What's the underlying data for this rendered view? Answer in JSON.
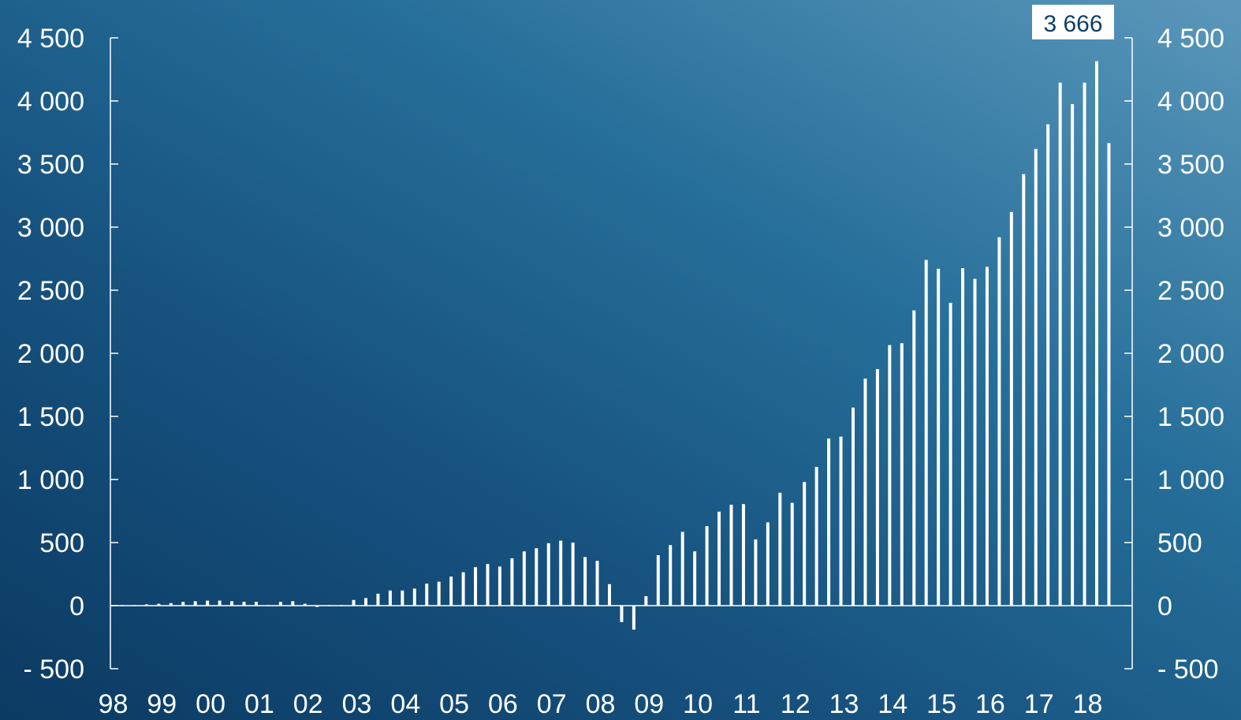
{
  "chart_data": {
    "type": "bar",
    "title": "",
    "xlabel": "",
    "ylabel": "",
    "ylim": [
      -500,
      4500
    ],
    "y_ticks": [
      -500,
      0,
      500,
      1000,
      1500,
      2000,
      2500,
      3000,
      3500,
      4000,
      4500
    ],
    "y_tick_labels": [
      "- 500",
      "0",
      "500",
      "1 000",
      "1 500",
      "2 000",
      "2 500",
      "3 000",
      "3 500",
      "4 000",
      "4 500"
    ],
    "x_tick_labels": [
      "98",
      "99",
      "00",
      "01",
      "02",
      "03",
      "04",
      "05",
      "06",
      "07",
      "08",
      "09",
      "10",
      "11",
      "12",
      "13",
      "14",
      "15",
      "16",
      "17",
      "18"
    ],
    "periods_per_year": 4,
    "first_period": "1998 Q1",
    "series": [
      {
        "values": [
          5,
          5,
          10,
          15,
          20,
          30,
          35,
          40,
          40,
          35,
          30,
          30,
          5,
          30,
          35,
          15,
          -10,
          5,
          5,
          45,
          60,
          95,
          120,
          120,
          135,
          175,
          190,
          230,
          265,
          305,
          330,
          310,
          375,
          430,
          455,
          495,
          515,
          500,
          385,
          355,
          170,
          -130,
          -190,
          75,
          400,
          480,
          585,
          430,
          630,
          745,
          800,
          805,
          525,
          660,
          895,
          815,
          980,
          1100,
          1325,
          1340,
          1570,
          1800,
          1875,
          2065,
          2080,
          2340,
          2740,
          2670,
          2400,
          2675,
          2590,
          2685,
          2920,
          3120,
          3420,
          3620,
          3815,
          4145,
          3975,
          4145,
          4315,
          3666
        ]
      }
    ],
    "annotations": [
      {
        "text": "3 666",
        "target": "last bar"
      }
    ],
    "grid": false,
    "legend": "none",
    "colors": {
      "bar": "#ffffff",
      "axis": "#ffffff",
      "callout_text": "#0e3f68"
    }
  }
}
